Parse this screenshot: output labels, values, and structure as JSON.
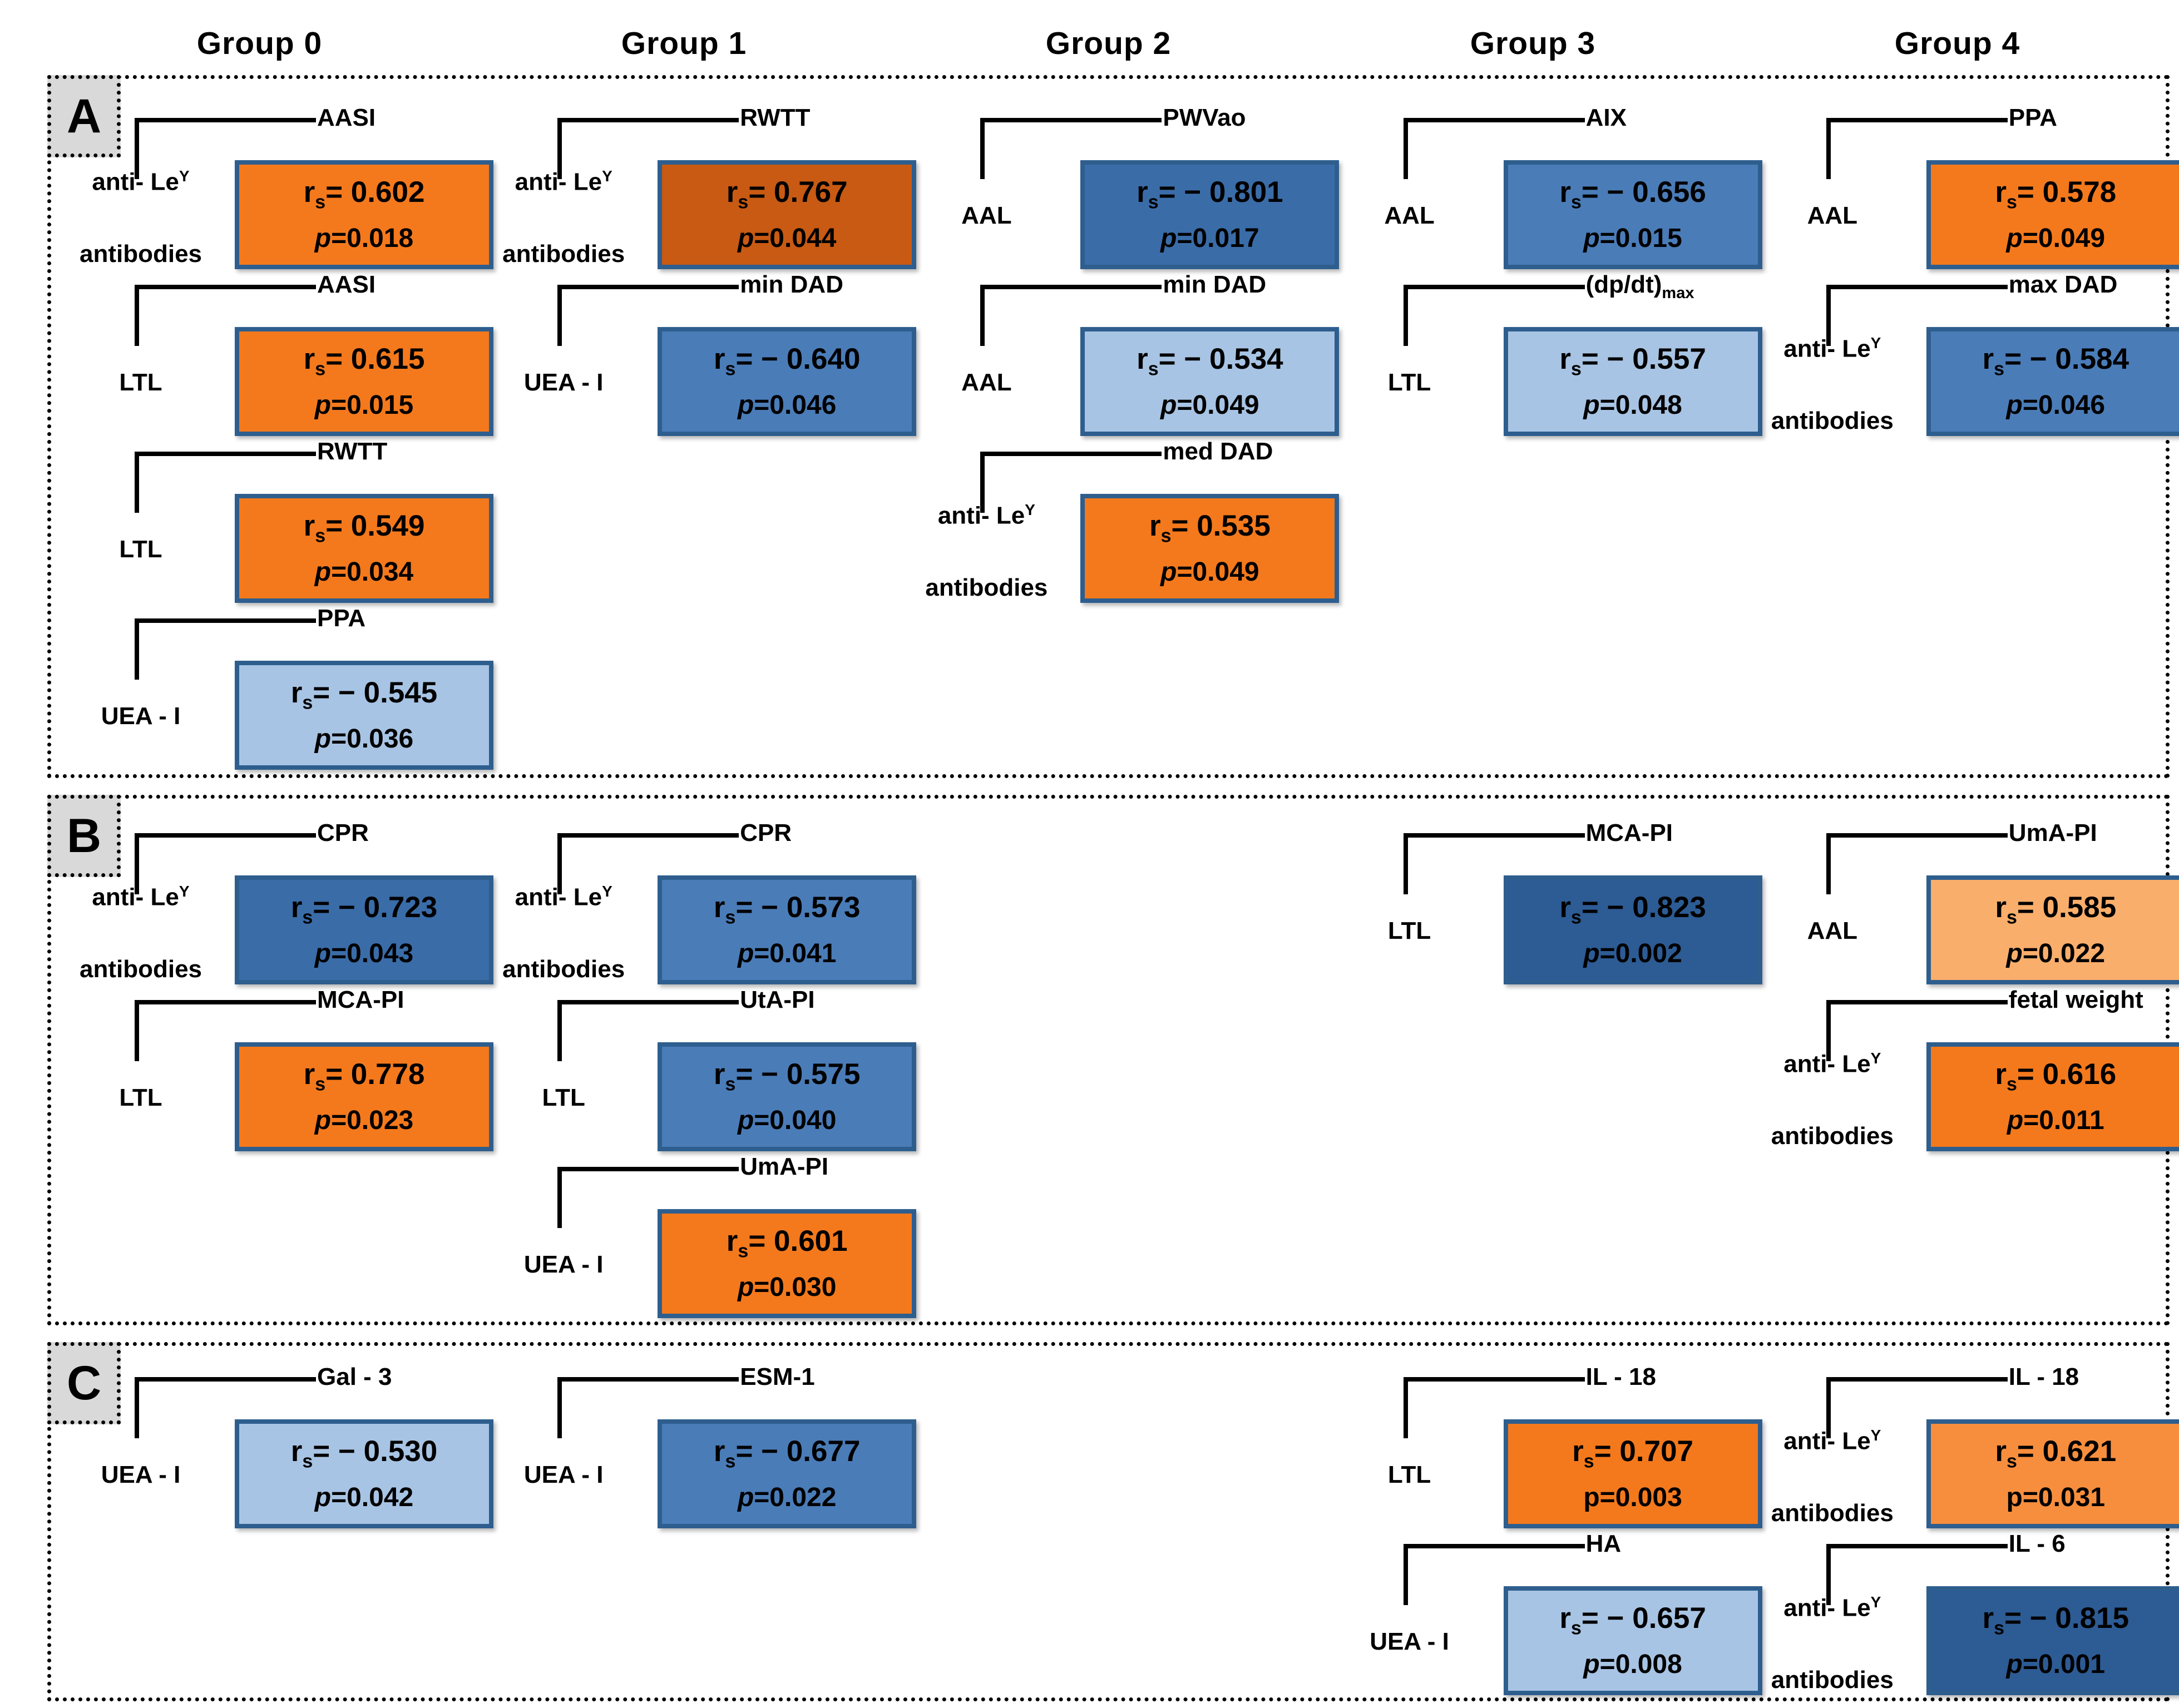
{
  "groups": [
    "Group 0",
    "Group 1",
    "Group 2",
    "Group 3",
    "Group 4"
  ],
  "palette": {
    "orange": "#F4791C",
    "dark_orange": "#C85A13",
    "medium_orange": "#F78E3D",
    "light_orange": "#F9AE6B",
    "light_blue": "#A8C4E4",
    "mid_blue": "#4A7CB8",
    "blue": "#3A6CA8",
    "dark_blue": "#2D5B94",
    "box_border": "#2E5E8E",
    "panel_label_bg": "#D9D9D9"
  },
  "r_symbol": "r",
  "r_subscript": "s",
  "p_symbol": "p",
  "panels": [
    {
      "label": "A",
      "rows": 4,
      "cells": [
        {
          "group": 0,
          "row": 0,
          "lectin": [
            "anti- Le^Y",
            "antibodies"
          ],
          "marker": "AASI",
          "r": "0.602",
          "p": "0.018",
          "color": "orange"
        },
        {
          "group": 1,
          "row": 0,
          "lectin": [
            "anti- Le^Y",
            "antibodies"
          ],
          "marker": "RWTT",
          "r": "0.767",
          "p": "0.044",
          "color": "dark_orange"
        },
        {
          "group": 2,
          "row": 0,
          "lectin": [
            "AAL"
          ],
          "marker": "PWVao",
          "r": "− 0.801",
          "p": "0.017",
          "color": "blue"
        },
        {
          "group": 3,
          "row": 0,
          "lectin": [
            "AAL"
          ],
          "marker": "AIX",
          "r": "− 0.656",
          "p": "0.015",
          "color": "mid_blue"
        },
        {
          "group": 4,
          "row": 0,
          "lectin": [
            "AAL"
          ],
          "marker": "PPA",
          "r": "0.578",
          "p": "0.049",
          "color": "orange"
        },
        {
          "group": 0,
          "row": 1,
          "lectin": [
            "LTL"
          ],
          "marker": "AASI",
          "r": "0.615",
          "p": "0.015",
          "color": "orange"
        },
        {
          "group": 1,
          "row": 1,
          "lectin": [
            "UEA - I"
          ],
          "marker": "min DAD",
          "r": "− 0.640",
          "p": "0.046",
          "color": "mid_blue"
        },
        {
          "group": 2,
          "row": 1,
          "lectin": [
            "AAL"
          ],
          "marker": "min DAD",
          "r": "− 0.534",
          "p": "0.049",
          "color": "light_blue"
        },
        {
          "group": 3,
          "row": 1,
          "lectin": [
            "LTL"
          ],
          "marker": "(dp/dt)_max",
          "r": "− 0.557",
          "p": "0.048",
          "color": "light_blue"
        },
        {
          "group": 4,
          "row": 1,
          "lectin": [
            "anti- Le^Y",
            "antibodies"
          ],
          "marker": "max DAD",
          "r": "− 0.584",
          "p": "0.046",
          "color": "mid_blue"
        },
        {
          "group": 0,
          "row": 2,
          "lectin": [
            "LTL"
          ],
          "marker": "RWTT",
          "r": "0.549",
          "p": "0.034",
          "color": "orange"
        },
        {
          "group": 2,
          "row": 2,
          "lectin": [
            "anti- Le^Y",
            "antibodies"
          ],
          "marker": "med DAD",
          "r": "0.535",
          "p": "0.049",
          "color": "orange"
        },
        {
          "group": 0,
          "row": 3,
          "lectin": [
            "UEA - I"
          ],
          "marker": "PPA",
          "r": "− 0.545",
          "p": "0.036",
          "color": "light_blue"
        }
      ]
    },
    {
      "label": "B",
      "rows": 3,
      "cells": [
        {
          "group": 0,
          "row": 0,
          "lectin": [
            "anti- Le^Y",
            "antibodies"
          ],
          "marker": "CPR",
          "r": "− 0.723",
          "p": "0.043",
          "color": "blue"
        },
        {
          "group": 1,
          "row": 0,
          "lectin": [
            "anti- Le^Y",
            "antibodies"
          ],
          "marker": "CPR",
          "r": "− 0.573",
          "p": "0.041",
          "color": "mid_blue"
        },
        {
          "group": 3,
          "row": 0,
          "lectin": [
            "LTL"
          ],
          "marker": "MCA-PI",
          "r": "− 0.823",
          "p": "0.002",
          "color": "dark_blue"
        },
        {
          "group": 4,
          "row": 0,
          "lectin": [
            "AAL"
          ],
          "marker": "UmA-PI",
          "r": "0.585",
          "p": "0.022",
          "color": "light_orange"
        },
        {
          "group": 0,
          "row": 1,
          "lectin": [
            "LTL"
          ],
          "marker": "MCA-PI",
          "r": "0.778",
          "p": "0.023",
          "color": "orange"
        },
        {
          "group": 1,
          "row": 1,
          "lectin": [
            "LTL"
          ],
          "marker": "UtA-PI",
          "r": "− 0.575",
          "p": "0.040",
          "color": "mid_blue"
        },
        {
          "group": 4,
          "row": 1,
          "lectin": [
            "anti- Le^Y",
            "antibodies"
          ],
          "marker": "fetal weight",
          "r": "0.616",
          "p": "0.011",
          "color": "orange"
        },
        {
          "group": 1,
          "row": 2,
          "lectin": [
            "UEA - I"
          ],
          "marker": "UmA-PI",
          "r": "0.601",
          "p": "0.030",
          "color": "orange"
        }
      ]
    },
    {
      "label": "C",
      "rows": 2,
      "cells": [
        {
          "group": 0,
          "row": 0,
          "lectin": [
            "UEA - I"
          ],
          "marker": "Gal - 3",
          "r": "− 0.530",
          "p": "0.042",
          "color": "light_blue"
        },
        {
          "group": 1,
          "row": 0,
          "lectin": [
            "UEA - I"
          ],
          "marker": "ESM-1",
          "r": "− 0.677",
          "p": "0.022",
          "color": "mid_blue"
        },
        {
          "group": 3,
          "row": 0,
          "lectin": [
            "LTL"
          ],
          "marker": "IL - 18",
          "r": "0.707",
          "p": "0.003",
          "color": "orange",
          "p_upright": true
        },
        {
          "group": 4,
          "row": 0,
          "lectin": [
            "anti- Le^Y",
            "antibodies"
          ],
          "marker": "IL - 18",
          "r": "0.621",
          "p": "0.031",
          "color": "medium_orange",
          "p_upright": true
        },
        {
          "group": 3,
          "row": 1,
          "lectin": [
            "UEA - I"
          ],
          "marker": "HA",
          "r": "− 0.657",
          "p": "0.008",
          "color": "light_blue"
        },
        {
          "group": 4,
          "row": 1,
          "lectin": [
            "anti- Le^Y",
            "antibodies"
          ],
          "marker": "IL - 6",
          "r": "− 0.815",
          "p": "0.001",
          "color": "dark_blue"
        }
      ]
    }
  ]
}
